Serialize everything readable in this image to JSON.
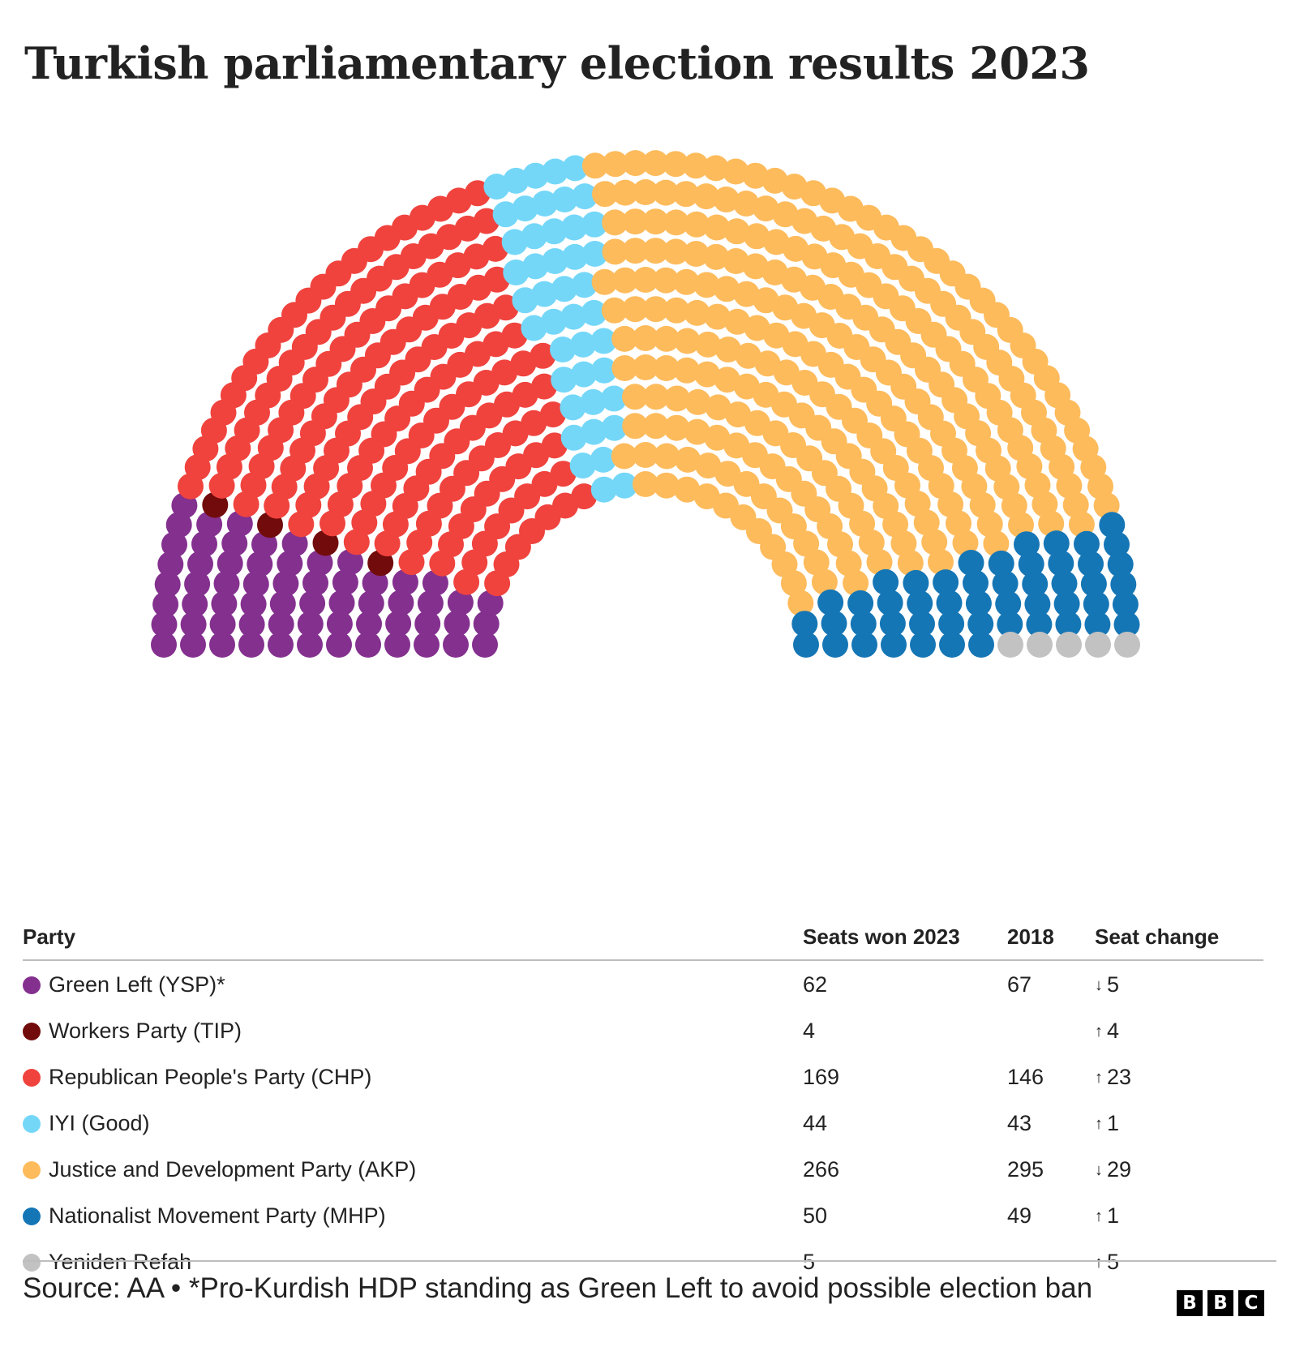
{
  "title": "Turkish parliamentary election results 2023",
  "chart_data": {
    "type": "hemicycle",
    "total_seats": 600,
    "series": [
      {
        "name": "Green Left (YSP)*",
        "seats_2023": 62,
        "seats_2018": 67,
        "change": "5",
        "direction": "down",
        "color": "#84308f"
      },
      {
        "name": "Workers Party (TIP)",
        "seats_2023": 4,
        "seats_2018": "",
        "change": "4",
        "direction": "up",
        "color": "#720b0b"
      },
      {
        "name": "Republican People's Party (CHP)",
        "seats_2023": 169,
        "seats_2018": 146,
        "change": "23",
        "direction": "up",
        "color": "#f0433e"
      },
      {
        "name": "IYI (Good)",
        "seats_2023": 44,
        "seats_2018": 43,
        "change": "1",
        "direction": "up",
        "color": "#74d7f8"
      },
      {
        "name": "Justice and Development Party (AKP)",
        "seats_2023": 266,
        "seats_2018": 295,
        "change": "29",
        "direction": "down",
        "color": "#fdbb5c"
      },
      {
        "name": "Nationalist Movement Party (MHP)",
        "seats_2023": 50,
        "seats_2018": 49,
        "change": "1",
        "direction": "up",
        "color": "#1576b6"
      },
      {
        "name": "Yeniden Refah",
        "seats_2023": 5,
        "seats_2018": "",
        "change": "5",
        "direction": "up",
        "color": "#c2c2c2"
      }
    ]
  },
  "table": {
    "headers": {
      "party": "Party",
      "won": "Seats won 2023",
      "prev": "2018",
      "change": "Seat change"
    }
  },
  "arrows": {
    "up": "↑",
    "down": "↓"
  },
  "source": "Source: AA • *Pro-Kurdish HDP standing as Green Left to avoid possible election ban",
  "logo": [
    "B",
    "B",
    "C"
  ]
}
